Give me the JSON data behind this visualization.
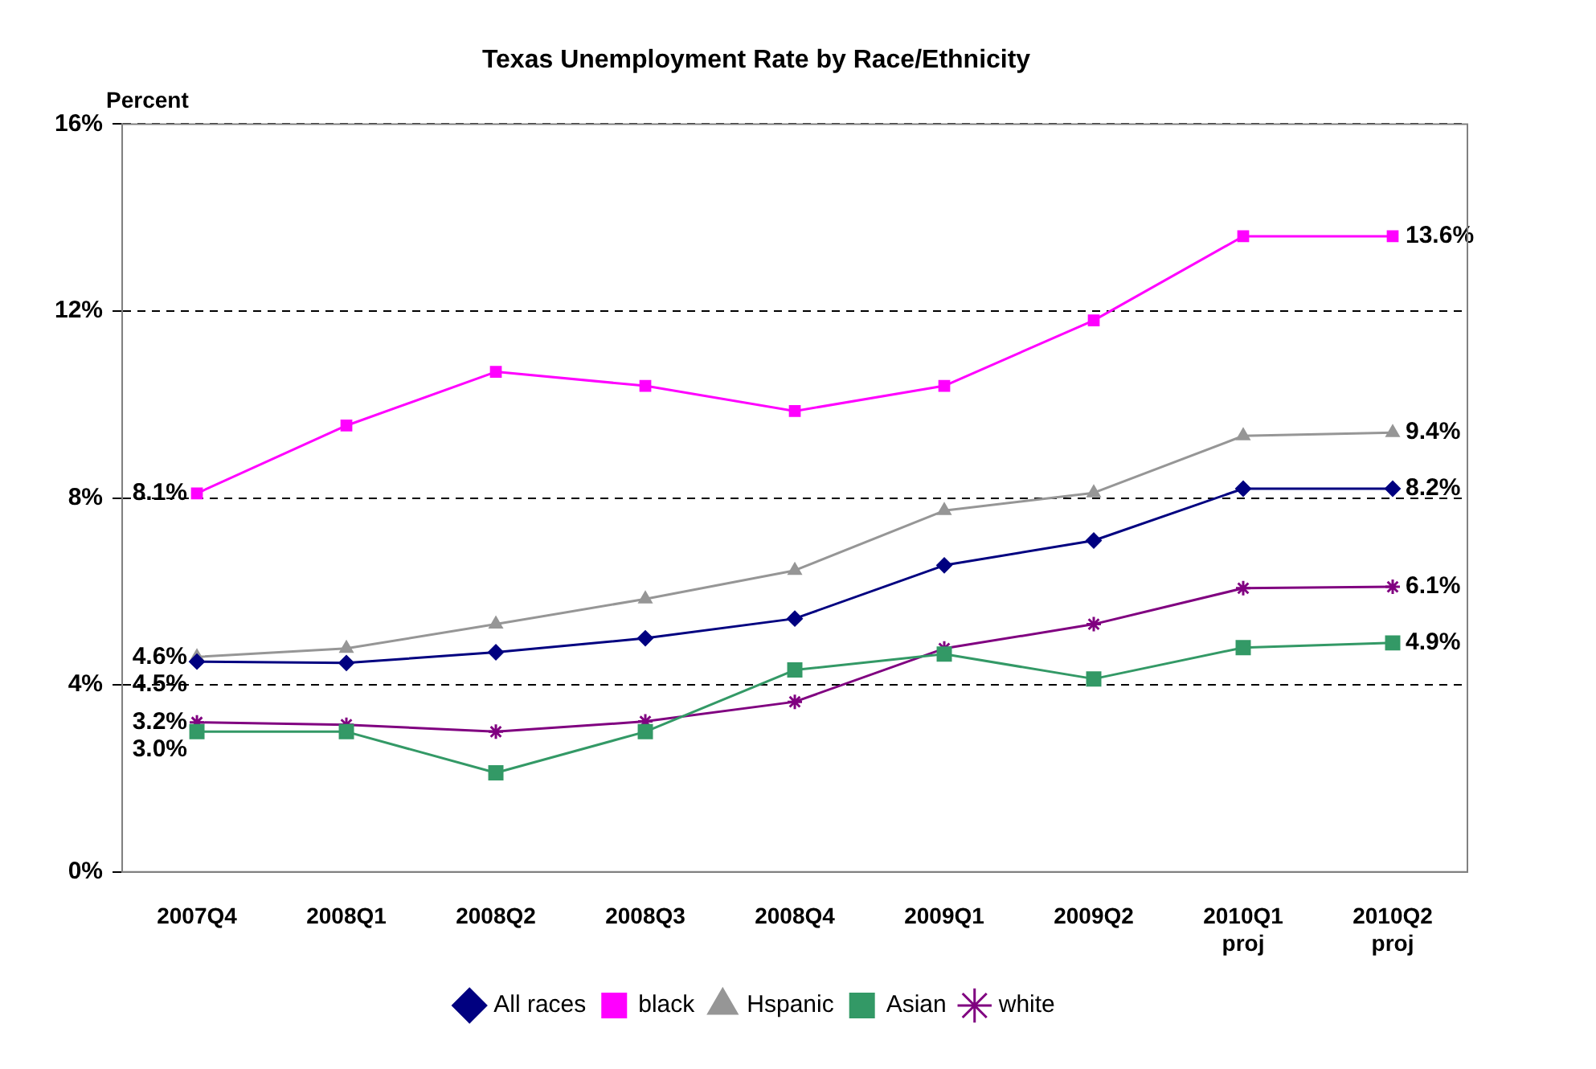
{
  "chart_data": {
    "type": "line",
    "title": "Texas Unemployment Rate by Race/Ethnicity",
    "ylabel": "Percent",
    "categories": [
      "2007Q4",
      "2008Q1",
      "2008Q2",
      "2008Q3",
      "2008Q4",
      "2009Q1",
      "2009Q2",
      "2010Q1\nproj",
      "2010Q2\nproj"
    ],
    "series": [
      {
        "name": "All races",
        "color": "#000080",
        "marker": "diamond",
        "values": [
          4.5,
          4.47,
          4.7,
          5.0,
          5.42,
          6.56,
          7.09,
          8.2,
          8.2
        ],
        "value_labels": [
          "4.5%",
          null,
          null,
          null,
          null,
          null,
          null,
          null,
          "8.2%"
        ]
      },
      {
        "name": "black",
        "color": "#ff00ff",
        "marker": "square",
        "values": [
          8.1,
          9.55,
          10.7,
          10.4,
          9.86,
          10.4,
          11.8,
          13.6,
          13.6
        ],
        "value_labels": [
          "8.1%",
          null,
          null,
          null,
          null,
          null,
          null,
          null,
          "13.6%"
        ]
      },
      {
        "name": "Hspanic",
        "color": "#969696",
        "marker": "triangle",
        "values": [
          4.6,
          4.78,
          5.3,
          5.84,
          6.45,
          7.73,
          8.11,
          9.33,
          9.4
        ],
        "value_labels": [
          "4.6%",
          null,
          null,
          null,
          null,
          null,
          null,
          null,
          "9.4%"
        ]
      },
      {
        "name": "Asian",
        "color": "#339966",
        "marker": "square",
        "values": [
          3.0,
          3.0,
          2.12,
          3.0,
          4.32,
          4.66,
          4.13,
          4.8,
          4.9
        ],
        "value_labels": [
          "3.0%",
          null,
          null,
          null,
          null,
          null,
          null,
          null,
          "4.9%"
        ]
      },
      {
        "name": "white",
        "color": "#800080",
        "marker": "cross",
        "values": [
          3.2,
          3.15,
          3.0,
          3.22,
          3.64,
          4.78,
          5.3,
          6.07,
          6.1
        ],
        "value_labels": [
          "3.2%",
          null,
          null,
          null,
          null,
          null,
          null,
          null,
          "6.1%"
        ]
      }
    ],
    "ylim": [
      0,
      16
    ],
    "yticks": [
      {
        "value": 0,
        "label": "0%"
      },
      {
        "value": 4,
        "label": "4%"
      },
      {
        "value": 8,
        "label": "8%"
      },
      {
        "value": 12,
        "label": "12%"
      },
      {
        "value": 16,
        "label": "16%"
      }
    ],
    "grid": "y",
    "legend": "bottom",
    "line_style": "solid"
  }
}
